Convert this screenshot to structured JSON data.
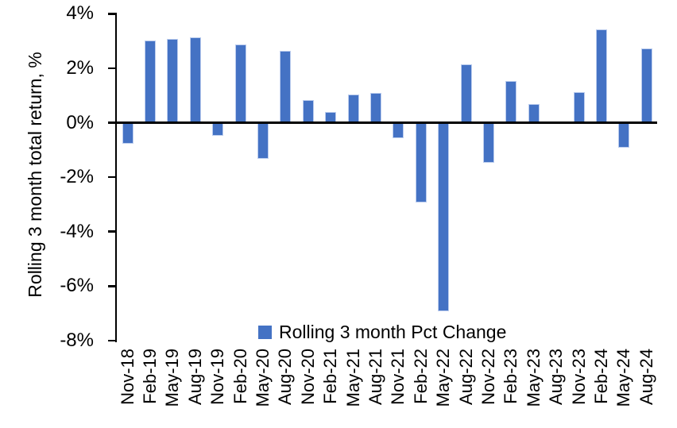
{
  "chart_data": {
    "type": "bar",
    "title": "",
    "xlabel": "",
    "ylabel": "Rolling 3 month total return, %",
    "legend": "Rolling 3 month Pct Change",
    "legend_position": "bottom-center",
    "grid": false,
    "ylim": [
      -8,
      4
    ],
    "ytick_values": [
      4,
      2,
      0,
      -2,
      -4,
      -6,
      -8
    ],
    "ytick_labels": [
      "4%",
      "2%",
      "0%",
      "-2%",
      "-4%",
      "-6%",
      "-8%"
    ],
    "categories": [
      "Nov-18",
      "Feb-19",
      "May-19",
      "Aug-19",
      "Nov-19",
      "Feb-20",
      "May-20",
      "Aug-20",
      "Nov-20",
      "Feb-21",
      "May-21",
      "Aug-21",
      "Nov-21",
      "Feb-22",
      "May-22",
      "Aug-22",
      "Nov-22",
      "Feb-23",
      "May-23",
      "Aug-23",
      "Nov-23",
      "Feb-24",
      "May-24",
      "Aug-24"
    ],
    "values": [
      -0.75,
      3.0,
      3.05,
      3.1,
      -0.45,
      2.85,
      -1.3,
      2.6,
      0.8,
      0.35,
      1.0,
      1.05,
      -0.55,
      -2.9,
      -6.9,
      2.1,
      -1.45,
      1.5,
      0.65,
      0.0,
      1.1,
      3.4,
      -0.9,
      2.7
    ],
    "colors": {
      "bar": "#4472C4",
      "bar_outline": "#BCCDEE",
      "axis": "#000000",
      "text": "#000000",
      "background": "#FFFFFF"
    }
  }
}
